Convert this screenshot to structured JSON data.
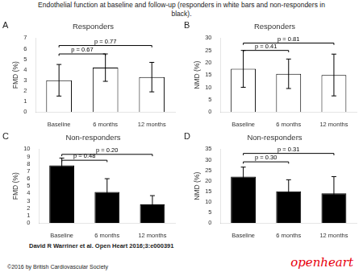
{
  "title": [
    "Endothelial function at baseline and follow-up (responders in white bars and non-responders in",
    "black)."
  ],
  "annotations": [
    {
      "text": "David R Warriner et al. Open Heart 2016;3:e000391"
    },
    {
      "text": "©2016 by British Cardiovascular Society"
    },
    {
      "text": "openheart",
      "color": "#e8000d"
    }
  ],
  "chart_data": [
    {
      "type": "bar",
      "label": "A",
      "title": "Responders",
      "ylabel": "FMD (%)",
      "categories": [
        "Baseline",
        "6 months",
        "12 months"
      ],
      "values": [
        3.0,
        4.2,
        3.3
      ],
      "errors": [
        1.5,
        1.3,
        1.4
      ],
      "color": "white",
      "ylim": [
        0,
        7
      ],
      "yticks": [
        0,
        1,
        2,
        3,
        4,
        5,
        6,
        7
      ],
      "grid": false,
      "annotations": [
        {
          "text": "p = 0.67",
          "x1": "Baseline",
          "x2": "6 months",
          "y": 5.5
        },
        {
          "text": "p = 0.77",
          "x1": "Baseline",
          "x2": "12 months",
          "y": 6.3
        }
      ]
    },
    {
      "type": "bar",
      "label": "B",
      "title": "Responders",
      "ylabel": "NMD (%)",
      "categories": [
        "Baseline",
        "6 months",
        "12 months"
      ],
      "values": [
        17.5,
        15.5,
        15.0
      ],
      "errors": [
        7.5,
        6.0,
        8.5
      ],
      "color": "white",
      "ylim": [
        0,
        30
      ],
      "yticks": [
        0,
        5,
        10,
        15,
        20,
        25,
        30
      ],
      "grid": false,
      "annotations": [
        {
          "text": "p = 0.41",
          "x1": "Baseline",
          "x2": "6 months",
          "y": 25.0
        },
        {
          "text": "p = 0.81",
          "x1": "Baseline",
          "x2": "12 months",
          "y": 28.0
        }
      ]
    },
    {
      "type": "bar",
      "label": "C",
      "title": "Non-responders",
      "ylabel": "FMD (%)",
      "categories": [
        "Baseline",
        "6 months",
        "12 months"
      ],
      "values": [
        7.8,
        4.2,
        2.5
      ],
      "errors": [
        1.0,
        1.8,
        1.2
      ],
      "color": "black",
      "ylim": [
        0,
        10
      ],
      "yticks": [
        0,
        1,
        2,
        3,
        4,
        5,
        6,
        7,
        8,
        9,
        10
      ],
      "grid": false,
      "annotations": [
        {
          "text": "p = 0.48",
          "x1": "Baseline",
          "x2": "6 months",
          "y": 8.5
        },
        {
          "text": "p = 0.20",
          "x1": "Baseline",
          "x2": "12 months",
          "y": 9.3
        }
      ]
    },
    {
      "type": "bar",
      "label": "D",
      "title": "Non-responders",
      "ylabel": "NMD (%)",
      "categories": [
        "Baseline",
        "6 months",
        "12 months"
      ],
      "values": [
        22.0,
        15.0,
        14.0
      ],
      "errors": [
        4.5,
        5.5,
        8.0
      ],
      "color": "black",
      "ylim": [
        0,
        35
      ],
      "yticks": [
        0,
        5,
        10,
        15,
        20,
        25,
        30,
        35
      ],
      "grid": false,
      "annotations": [
        {
          "text": "p = 0.30",
          "x1": "Baseline",
          "x2": "6 months",
          "y": 29.0
        },
        {
          "text": "p = 0.31",
          "x1": "Baseline",
          "x2": "12 months",
          "y": 33.0
        }
      ]
    }
  ]
}
